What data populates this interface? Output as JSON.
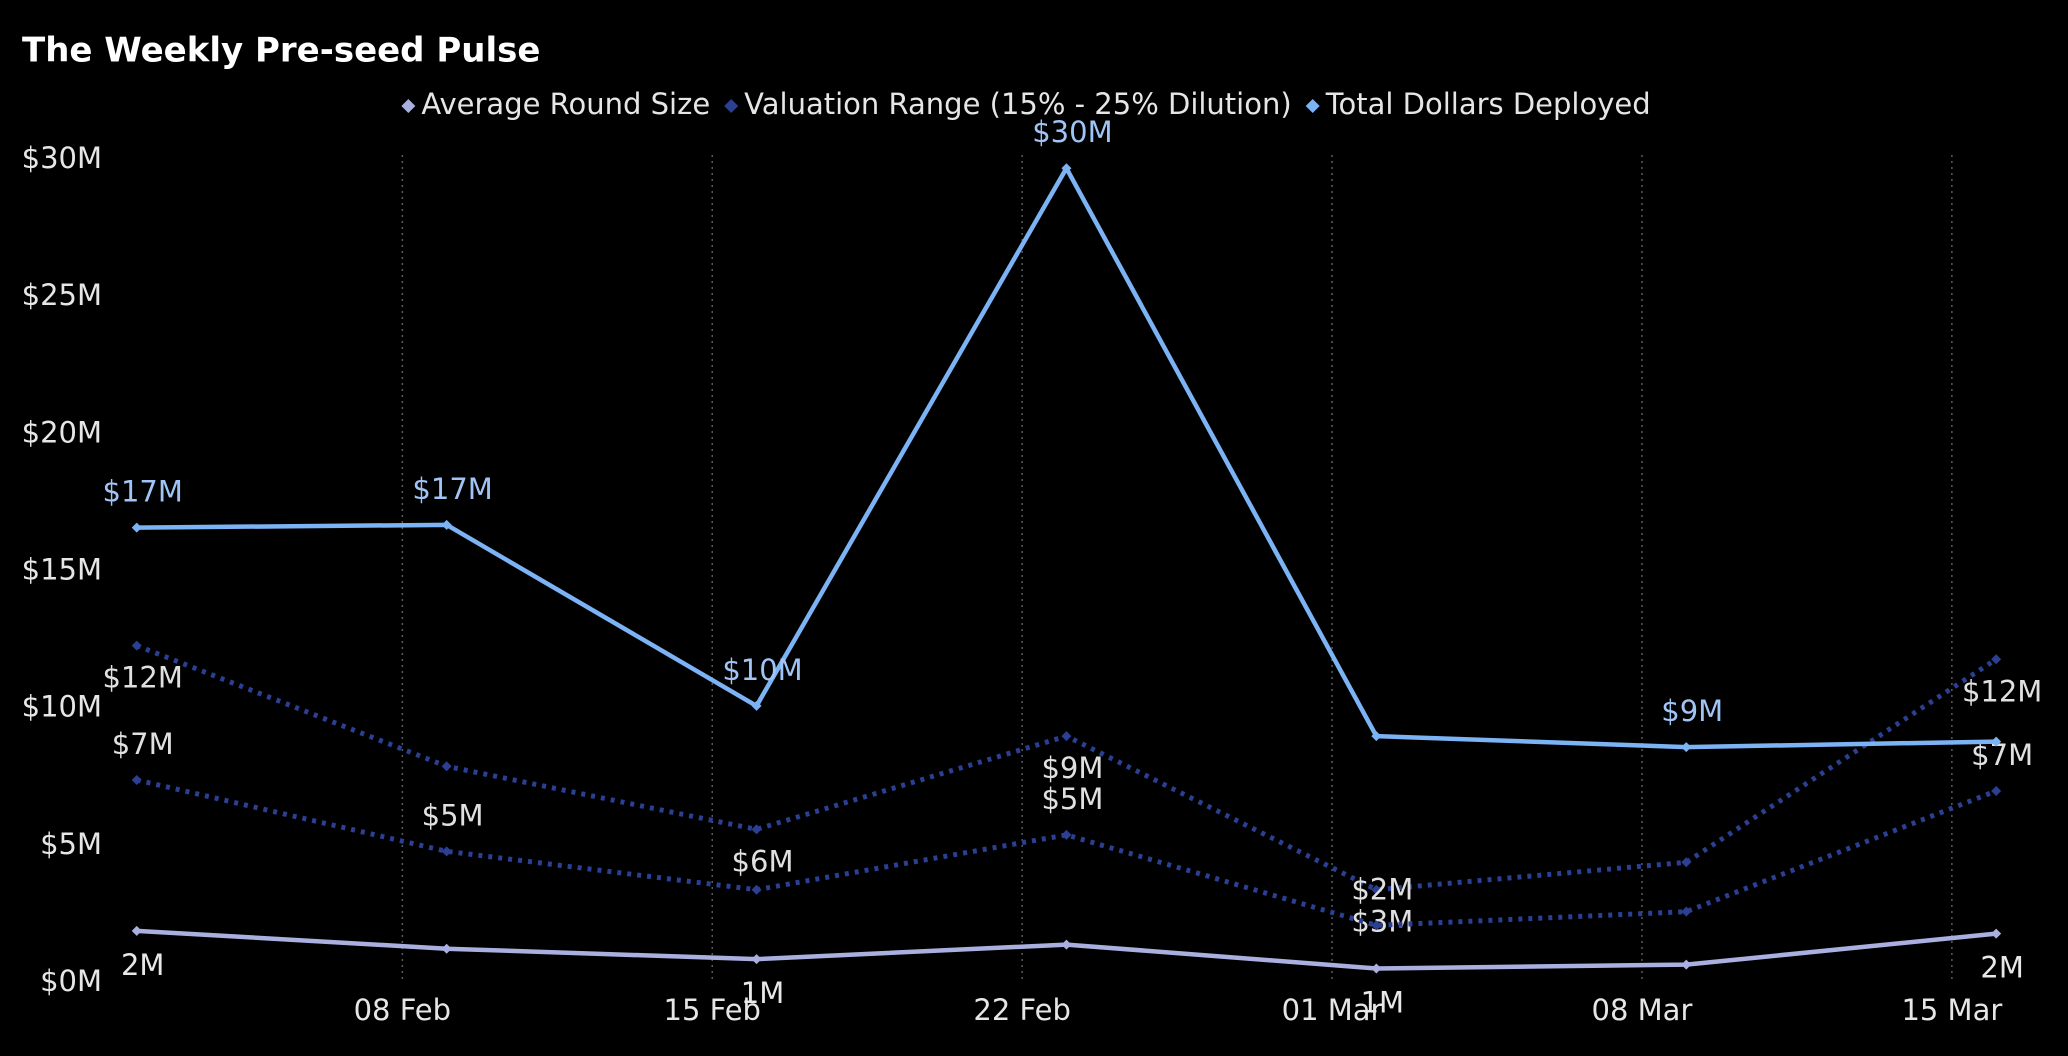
{
  "chart_data": {
    "type": "line",
    "title": "The Weekly Pre-seed Pulse",
    "x": [
      33,
      40,
      47,
      54,
      61,
      68,
      75
    ],
    "xlim": [
      32.6,
      75.2
    ],
    "xticks": [
      {
        "value": 39,
        "label": "08 Feb"
      },
      {
        "value": 46,
        "label": "15 Feb"
      },
      {
        "value": 53,
        "label": "22 Feb"
      },
      {
        "value": 60,
        "label": "01 Mar"
      },
      {
        "value": 67,
        "label": "08 Mar"
      },
      {
        "value": 74,
        "label": "15 Mar"
      }
    ],
    "ylim": [
      0,
      30
    ],
    "yticks": [
      {
        "value": 0,
        "label": "$0M"
      },
      {
        "value": 5,
        "label": "$5M"
      },
      {
        "value": 10,
        "label": "$10M"
      },
      {
        "value": 15,
        "label": "$15M"
      },
      {
        "value": 20,
        "label": "$20M"
      },
      {
        "value": 25,
        "label": "$25M"
      },
      {
        "value": 30,
        "label": "$30M"
      }
    ],
    "grid": "x",
    "series": [
      {
        "name": "Average Round Size",
        "color": "#a9b0e0",
        "dashed": false,
        "values": [
          1.9,
          1.25,
          0.87,
          1.4,
          0.53,
          0.67,
          1.8
        ],
        "value_labels": [
          "2M",
          null,
          "1M",
          null,
          "1M",
          null,
          "2M"
        ]
      },
      {
        "name": "Valuation Range (15% - 25% Dilution)",
        "color": "#2b3f93",
        "dashed": true,
        "values": [
          12.3,
          7.9,
          5.6,
          9.0,
          3.4,
          4.4,
          11.8
        ],
        "value_labels": [
          "$12M",
          null,
          "$6M",
          "$9M",
          "$3M",
          null,
          "$12M"
        ],
        "low_values": [
          7.4,
          4.8,
          3.4,
          5.4,
          2.1,
          2.6,
          7.0
        ],
        "low_value_labels": [
          "$7M",
          "$5M",
          null,
          "$5M",
          "$2M",
          null,
          "$7M"
        ]
      },
      {
        "name": "Total Dollars Deployed",
        "color": "#7cb3f5",
        "dashed": false,
        "values": [
          16.6,
          16.7,
          10.1,
          29.7,
          9.0,
          8.6,
          8.8
        ],
        "value_labels": [
          "$17M",
          "$17M",
          "$10M",
          "$30M",
          null,
          "$9M",
          null
        ]
      }
    ]
  }
}
